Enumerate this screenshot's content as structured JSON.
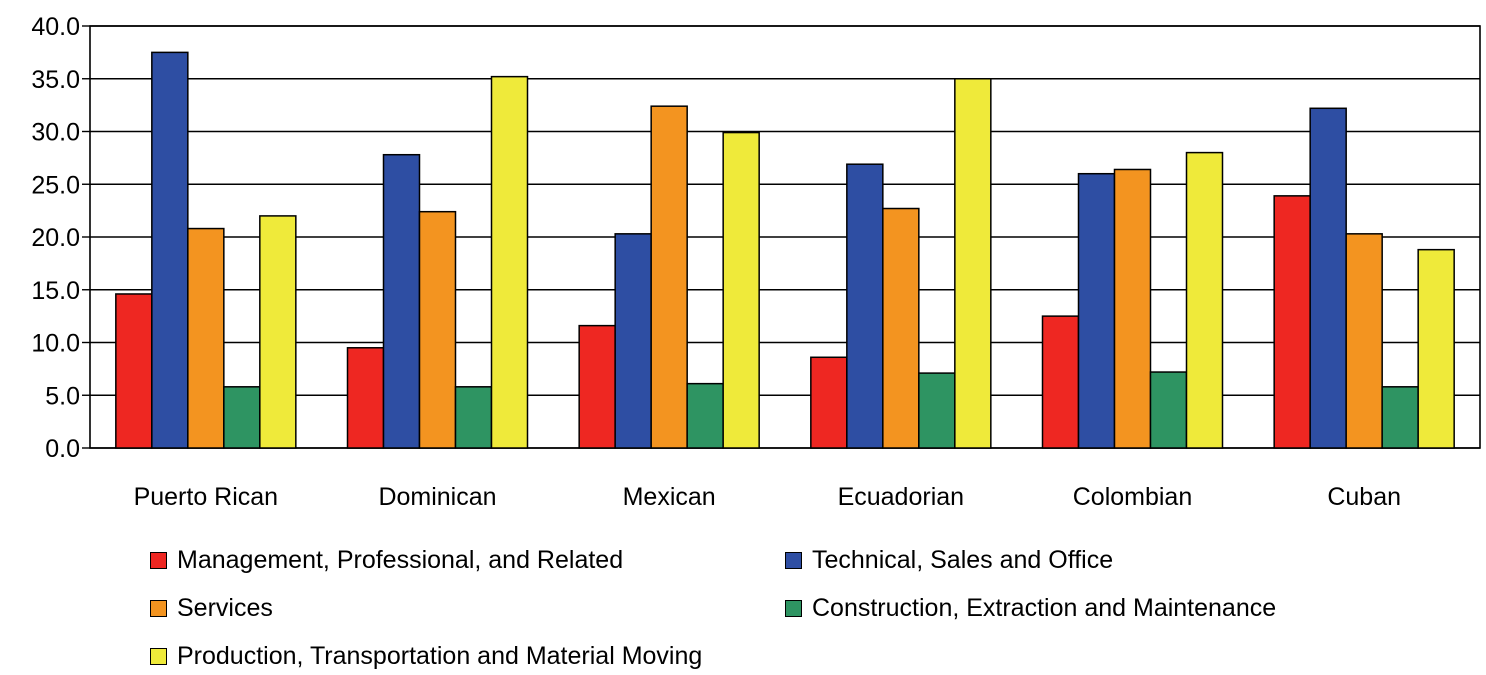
{
  "chart_data": {
    "type": "bar",
    "categories": [
      "Puerto Rican",
      "Dominican",
      "Mexican",
      "Ecuadorian",
      "Colombian",
      "Cuban"
    ],
    "series": [
      {
        "name": "Management, Professional, and Related",
        "color": "#EE2722",
        "values": [
          14.6,
          9.5,
          11.6,
          8.6,
          12.5,
          23.9
        ]
      },
      {
        "name": "Technical, Sales and Office",
        "color": "#2E4EA3",
        "values": [
          37.5,
          27.8,
          20.3,
          26.9,
          26.0,
          32.2
        ]
      },
      {
        "name": "Services",
        "color": "#F39420",
        "values": [
          20.8,
          22.4,
          32.4,
          22.7,
          26.4,
          20.3
        ]
      },
      {
        "name": "Construction, Extraction and Maintenance",
        "color": "#2E9462",
        "values": [
          5.8,
          5.8,
          6.1,
          7.1,
          7.2,
          5.8
        ]
      },
      {
        "name": "Production, Transportation and Material Moving",
        "color": "#EFEA3A",
        "values": [
          22.0,
          35.2,
          29.9,
          35.0,
          28.0,
          18.8
        ]
      }
    ],
    "ylim": [
      0,
      40
    ],
    "yticks": [
      "0.0",
      "5.0",
      "10.0",
      "15.0",
      "20.0",
      "25.0",
      "30.0",
      "35.0",
      "40.0"
    ],
    "grid": true,
    "legend_position": "bottom",
    "title": "",
    "xlabel": "",
    "ylabel": ""
  }
}
